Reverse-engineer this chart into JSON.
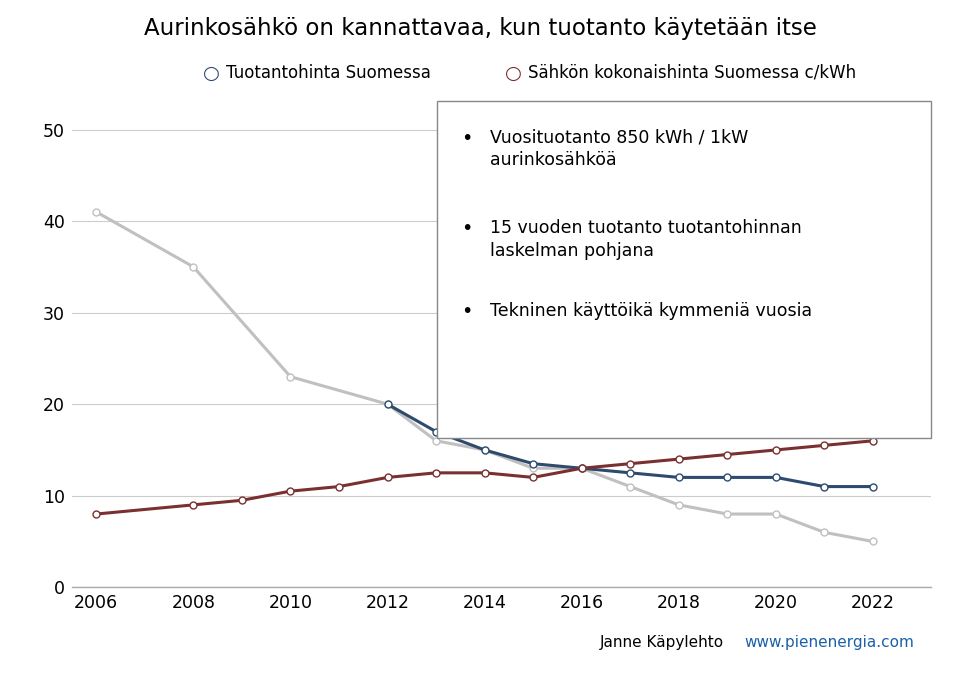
{
  "title": "Aurinkosähkö on kannattavaa, kun tuotanto käytetään itse",
  "legend_label1": "Tuotantohinta Suomessa",
  "legend_label2": "Sähkön kokonaishinta Suomessa c/kWh",
  "annotation_lines": [
    "Vuosituotanto 850 kWh / 1kW\naurinkosähköä",
    "15 vuoden tuotanto tuotantohinnan\nlaskelman pohjana",
    "Tekninen käyttöikä kymmeniä vuosia"
  ],
  "years_grey": [
    2006,
    2008,
    2010,
    2012,
    2013,
    2014,
    2015,
    2016,
    2017,
    2018,
    2019,
    2020,
    2021,
    2022
  ],
  "vals_grey": [
    41,
    35,
    23,
    20,
    16,
    15,
    13,
    13,
    11,
    9,
    8,
    8,
    6,
    5
  ],
  "years_blue": [
    2012,
    2013,
    2014,
    2015,
    2016,
    2017,
    2018,
    2019,
    2020,
    2021,
    2022
  ],
  "vals_blue": [
    20,
    17,
    15,
    13.5,
    13,
    12.5,
    12,
    12,
    12,
    11,
    11
  ],
  "years_red": [
    2006,
    2008,
    2009,
    2010,
    2011,
    2012,
    2013,
    2014,
    2015,
    2016,
    2017,
    2018,
    2019,
    2020,
    2021,
    2022
  ],
  "vals_red": [
    8,
    9,
    9.5,
    10.5,
    11,
    12,
    12.5,
    12.5,
    12,
    13,
    13.5,
    14,
    14.5,
    15,
    15.5,
    16
  ],
  "ylim": [
    0,
    52
  ],
  "yticks": [
    0,
    10,
    20,
    30,
    40,
    50
  ],
  "xlim": [
    2005.5,
    2023.2
  ],
  "xticks": [
    2006,
    2008,
    2010,
    2012,
    2014,
    2016,
    2018,
    2020,
    2022
  ],
  "color_grey": "#c0c0c0",
  "color_blue": "#2e4b6e",
  "color_red": "#7a3030",
  "marker_style": "o",
  "marker_size": 5,
  "line_width": 2.2,
  "bg_color": "#ffffff",
  "footer_left": "Janne Käpylehto",
  "footer_right": "www.pienenergia.com",
  "footer_bar_color": "#6b8c2a",
  "footer_bg": "#e8e8e8"
}
